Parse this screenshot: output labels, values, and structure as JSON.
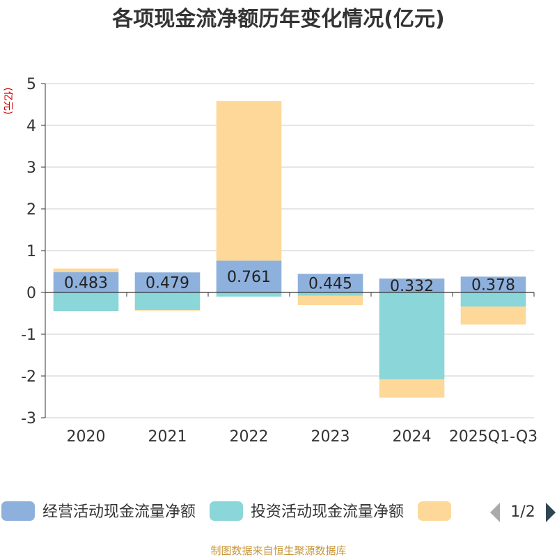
{
  "chart_data": {
    "type": "bar",
    "stacked": true,
    "title": "各项现金流净额历年变化情况(亿元)",
    "ylabel": "(亿元)",
    "xlabel": "",
    "ylim": [
      -3,
      5
    ],
    "yticks": [
      -3,
      -2,
      -1,
      0,
      1,
      2,
      3,
      4,
      5
    ],
    "grid": true,
    "categories": [
      "2020",
      "2021",
      "2022",
      "2023",
      "2024",
      "2025Q1-Q3"
    ],
    "series": [
      {
        "name": "经营活动现金流量净额",
        "color": "#8eb0dc",
        "values": [
          0.483,
          0.479,
          0.761,
          0.445,
          0.332,
          0.378
        ],
        "labels": [
          "0.483",
          "0.479",
          "0.761",
          "0.445",
          "0.332",
          "0.378"
        ]
      },
      {
        "name": "投资活动现金流量净额",
        "color": "#8ad6d8",
        "values": [
          -0.45,
          -0.42,
          -0.1,
          -0.08,
          -2.08,
          -0.34
        ]
      },
      {
        "name": "",
        "color": "#fed898",
        "values": [
          0.09,
          -0.02,
          3.82,
          -0.22,
          -0.44,
          -0.43
        ]
      }
    ],
    "legend": {
      "placement": "bottom",
      "page": "1/2"
    },
    "source": "制图数据来自恒生聚源数据库"
  }
}
